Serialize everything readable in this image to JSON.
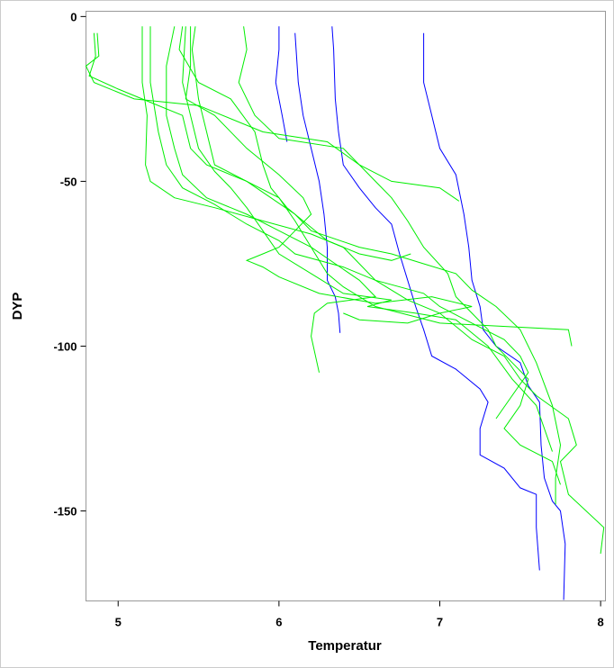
{
  "chart_data": {
    "type": "line",
    "xlabel": "Temperatur",
    "ylabel": "DYP",
    "xlim": [
      4.8,
      8.03
    ],
    "ylim": [
      -177.3,
      1.6
    ],
    "xticks": [
      5,
      6,
      7,
      8
    ],
    "yticks": [
      0,
      -50,
      -100,
      -150
    ],
    "series": [
      {
        "color": "#0000ff",
        "x": [
          6.0,
          6.0,
          5.98,
          6.02,
          6.05
        ],
        "y": [
          -3,
          -10,
          -20,
          -30,
          -38
        ]
      },
      {
        "color": "#0000ff",
        "x": [
          6.1,
          6.12,
          6.15,
          6.2,
          6.25,
          6.28,
          6.3,
          6.3,
          6.35,
          6.37,
          6.38
        ],
        "y": [
          -5,
          -20,
          -30,
          -40,
          -50,
          -60,
          -70,
          -80,
          -85,
          -90,
          -96
        ]
      },
      {
        "color": "#0000ff",
        "x": [
          6.33,
          6.34,
          6.35,
          6.37,
          6.4,
          6.5,
          6.6,
          6.7,
          6.75,
          6.8,
          6.85,
          6.9,
          6.95,
          7.1,
          7.25,
          7.3,
          7.25,
          7.25,
          7.4,
          7.5,
          7.6,
          7.6,
          7.62
        ],
        "y": [
          -3,
          -10,
          -25,
          -35,
          -45,
          -52,
          -58,
          -63,
          -72,
          -80,
          -88,
          -95,
          -103,
          -107,
          -113,
          -117,
          -125,
          -133,
          -137,
          -143,
          -145,
          -155,
          -168
        ]
      },
      {
        "color": "#0000ff",
        "x": [
          6.9,
          6.9,
          6.95,
          7.0,
          7.1,
          7.15,
          7.18,
          7.2,
          7.25,
          7.27,
          7.35,
          7.5,
          7.55,
          7.62,
          7.63,
          7.65,
          7.7,
          7.75,
          7.78,
          7.77
        ],
        "y": [
          -5,
          -20,
          -30,
          -40,
          -48,
          -60,
          -70,
          -80,
          -88,
          -95,
          -100,
          -105,
          -112,
          -117,
          -130,
          -140,
          -147,
          -150,
          -160,
          -177
        ]
      },
      {
        "color": "#00ee00",
        "x": [
          4.87,
          4.88,
          4.8,
          4.85,
          5.1,
          5.5,
          5.9,
          6.3,
          6.5,
          6.7,
          7.0,
          7.12
        ],
        "y": [
          -5,
          -12,
          -15,
          -20,
          -25,
          -27,
          -35,
          -38,
          -45,
          -50,
          -52,
          -56
        ]
      },
      {
        "color": "#00ee00",
        "x": [
          4.85,
          4.86,
          4.82,
          5.0,
          5.2,
          5.4,
          5.45,
          5.55,
          5.8,
          6.0,
          6.1,
          6.2,
          6.3,
          6.4,
          6.6,
          7.0,
          7.8,
          7.82
        ],
        "y": [
          -5,
          -12,
          -18,
          -22,
          -26,
          -30,
          -40,
          -45,
          -50,
          -55,
          -62,
          -70,
          -78,
          -82,
          -88,
          -93,
          -95,
          -100
        ]
      },
      {
        "color": "#00ee00",
        "x": [
          5.15,
          5.15,
          5.18,
          5.17,
          5.2,
          5.35,
          5.6,
          5.9,
          6.2,
          6.4,
          6.5,
          6.6,
          6.8,
          7.0,
          7.2,
          7.4,
          7.5,
          7.6,
          7.8,
          7.85,
          7.75,
          7.8,
          8.02,
          8.0
        ],
        "y": [
          -3,
          -20,
          -30,
          -45,
          -50,
          -55,
          -58,
          -62,
          -66,
          -70,
          -75,
          -80,
          -86,
          -90,
          -98,
          -103,
          -110,
          -115,
          -122,
          -130,
          -135,
          -145,
          -155,
          -163
        ]
      },
      {
        "color": "#00ee00",
        "x": [
          5.2,
          5.2,
          5.25,
          5.3,
          5.4,
          5.6,
          5.8,
          6.0,
          6.1,
          6.4,
          6.6,
          6.9,
          7.0,
          7.2,
          7.4,
          7.5,
          7.55,
          7.45,
          7.35
        ],
        "y": [
          -3,
          -20,
          -35,
          -45,
          -52,
          -57,
          -63,
          -68,
          -72,
          -76,
          -80,
          -84,
          -88,
          -93,
          -98,
          -103,
          -108,
          -115,
          -122
        ]
      },
      {
        "color": "#00ee00",
        "x": [
          5.35,
          5.3,
          5.3,
          5.35,
          5.4,
          5.55,
          5.8,
          6.0,
          6.2,
          6.35,
          6.5,
          6.6,
          6.3,
          6.22,
          6.2,
          6.25
        ],
        "y": [
          -3,
          -15,
          -30,
          -40,
          -48,
          -55,
          -60,
          -65,
          -70,
          -75,
          -80,
          -85,
          -87,
          -90,
          -97,
          -108
        ]
      },
      {
        "color": "#00ee00",
        "x": [
          5.42,
          5.4,
          5.45,
          5.5,
          5.6,
          5.7,
          5.8,
          5.9,
          6.0,
          6.2,
          6.4,
          6.7,
          6.55,
          6.85,
          7.1,
          7.3,
          7.45,
          7.6,
          7.65,
          7.7
        ],
        "y": [
          -3,
          -20,
          -30,
          -40,
          -47,
          -52,
          -58,
          -65,
          -72,
          -78,
          -84,
          -86,
          -88,
          -90,
          -92,
          -100,
          -110,
          -118,
          -125,
          -132
        ]
      },
      {
        "color": "#00ee00",
        "x": [
          5.48,
          5.46,
          5.5,
          5.55,
          5.6,
          5.8,
          5.95,
          6.1,
          6.2,
          6.5,
          6.7,
          6.9,
          7.1,
          7.2,
          7.35,
          7.5,
          7.6,
          7.7,
          7.75,
          7.72,
          7.72
        ],
        "y": [
          -3,
          -10,
          -25,
          -35,
          -45,
          -50,
          -55,
          -60,
          -65,
          -70,
          -72,
          -75,
          -78,
          -83,
          -88,
          -95,
          -105,
          -118,
          -130,
          -140,
          -148
        ]
      },
      {
        "color": "#00ee00",
        "x": [
          5.45,
          5.45,
          5.42,
          5.6,
          5.8,
          6.0,
          6.15,
          6.2,
          6.1,
          6.0,
          5.9,
          5.8,
          5.9,
          6.0,
          6.25,
          6.6,
          6.95,
          7.2,
          7.0,
          6.8,
          6.5,
          6.4
        ],
        "y": [
          -3,
          -15,
          -25,
          -30,
          -40,
          -48,
          -55,
          -60,
          -65,
          -70,
          -72,
          -74,
          -76,
          -79,
          -84,
          -87,
          -85,
          -88,
          -90,
          -93,
          -92,
          -90
        ]
      },
      {
        "color": "#00ee00",
        "x": [
          5.78,
          5.8,
          5.75,
          5.85,
          6.0,
          6.4,
          6.5,
          6.6,
          6.7,
          6.8,
          6.9,
          7.05,
          7.1,
          7.2,
          7.3,
          7.35,
          7.45,
          7.55,
          7.5,
          7.4,
          7.5,
          7.7,
          7.75
        ],
        "y": [
          -3,
          -10,
          -20,
          -30,
          -37,
          -40,
          -45,
          -50,
          -55,
          -62,
          -70,
          -78,
          -85,
          -90,
          -95,
          -100,
          -105,
          -110,
          -118,
          -125,
          -130,
          -135,
          -142
        ]
      },
      {
        "color": "#00ee00",
        "x": [
          5.4,
          5.38,
          5.5,
          5.7,
          5.85,
          5.9,
          5.95,
          6.05,
          6.15,
          6.3,
          6.5,
          6.7,
          6.82
        ],
        "y": [
          -3,
          -10,
          -20,
          -25,
          -35,
          -45,
          -52,
          -58,
          -62,
          -68,
          -72,
          -74,
          -72
        ]
      }
    ]
  }
}
